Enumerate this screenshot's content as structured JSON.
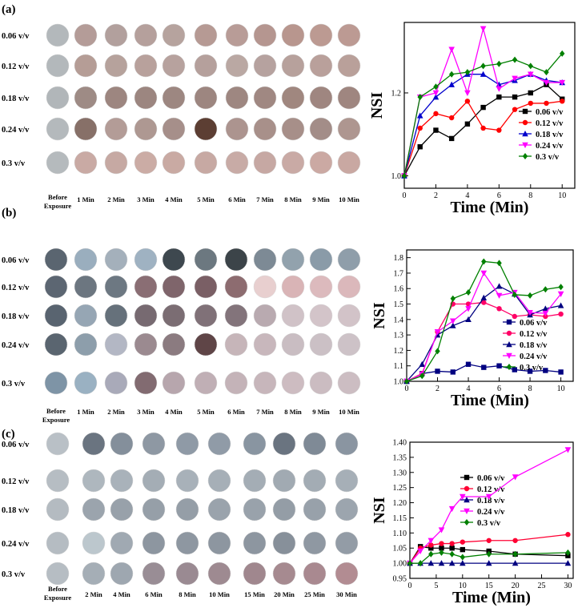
{
  "panels": [
    {
      "label": "(a)",
      "rows": [
        "0.06 v/v",
        "0.12 v/v",
        "0.18 v/v",
        "0.24 v/v",
        "0.3 v/v"
      ],
      "columns": [
        "Before Exposure",
        "1 Min",
        "2 Min",
        "3 Min",
        "4 Min",
        "5 Min",
        "6 Min",
        "7 Min",
        "8 Min",
        "9 Min",
        "10 Min"
      ],
      "swatch_colors": [
        [
          "#b3b8bb",
          "#b49c98",
          "#b2a09d",
          "#b5a09c",
          "#b6a39e",
          "#b69a94",
          "#b89c97",
          "#b59690",
          "#b8968e",
          "#bc9a92",
          "#bc9a93"
        ],
        [
          "#b3b8bb",
          "#b59d96",
          "#b6a29c",
          "#b8a19c",
          "#b7a29e",
          "#b5a09c",
          "#baa8a3",
          "#b6a29f",
          "#b7a19c",
          "#b9a09b",
          "#b9a09a"
        ],
        [
          "#b1b6b9",
          "#9e8b85",
          "#9d8680",
          "#9c8680",
          "#9d8781",
          "#9d8680",
          "#9e8781",
          "#a08882",
          "#a0877f",
          "#9f8680",
          "#9f8680"
        ],
        [
          "#b4b9bc",
          "#877068",
          "#b39c97",
          "#ae9892",
          "#a68f8a",
          "#5c3e33",
          "#ac948f",
          "#a8908a",
          "#a78f89",
          "#a38d88",
          "#ae9690"
        ],
        [
          "#b5babd",
          "#c9aaa4",
          "#c6a9a3",
          "#cbaca5",
          "#c9aaa3",
          "#c7a9a3",
          "#c8aba6",
          "#c6a8a3",
          "#c9aaa5",
          "#cba9a3",
          "#c9a8a2"
        ]
      ],
      "chart_data": {
        "type": "line",
        "title": "",
        "xlabel": "Time (Min)",
        "ylabel": "NSI",
        "xlim": [
          0,
          10.8
        ],
        "ylim": [
          0.97,
          1.37
        ],
        "xticks": [
          "0",
          "2",
          "4",
          "6",
          "8",
          "10"
        ],
        "yticks": [
          "1.0",
          "1.2"
        ],
        "legend_position": "right",
        "series": [
          {
            "name": "0.06 v/v",
            "color": "#000000",
            "marker": "square",
            "x": [
              0,
              1,
              2,
              3,
              4,
              5,
              6,
              7,
              8,
              9,
              10
            ],
            "y": [
              1.0,
              1.07,
              1.11,
              1.09,
              1.125,
              1.165,
              1.19,
              1.19,
              1.2,
              1.22,
              1.185
            ]
          },
          {
            "name": "0.12 v/v",
            "color": "#ff0000",
            "marker": "circle",
            "x": [
              0,
              1,
              2,
              3,
              4,
              5,
              6,
              7,
              8,
              9,
              10
            ],
            "y": [
              1.0,
              1.115,
              1.15,
              1.14,
              1.18,
              1.115,
              1.11,
              1.16,
              1.175,
              1.175,
              1.18
            ]
          },
          {
            "name": "0.18 v/v",
            "color": "#0000cc",
            "marker": "triangle-up",
            "x": [
              0,
              1,
              2,
              3,
              4,
              5,
              6,
              7,
              8,
              9,
              10
            ],
            "y": [
              1.0,
              1.145,
              1.19,
              1.22,
              1.245,
              1.245,
              1.22,
              1.23,
              1.245,
              1.23,
              1.225
            ]
          },
          {
            "name": "0.24 v/v",
            "color": "#ff00ff",
            "marker": "triangle-down",
            "x": [
              0,
              1,
              2,
              3,
              4,
              5,
              6,
              7,
              8,
              9,
              10
            ],
            "y": [
              1.0,
              1.19,
              1.2,
              1.305,
              1.2,
              1.355,
              1.21,
              1.235,
              1.245,
              1.225,
              1.225
            ]
          },
          {
            "name": "0.3 v/v",
            "color": "#008000",
            "marker": "diamond",
            "x": [
              0,
              1,
              2,
              3,
              4,
              5,
              6,
              7,
              8,
              9,
              10
            ],
            "y": [
              1.0,
              1.19,
              1.215,
              1.245,
              1.25,
              1.265,
              1.27,
              1.28,
              1.265,
              1.25,
              1.295
            ]
          }
        ]
      }
    },
    {
      "label": "(b)",
      "rows": [
        "0.06 v/v",
        "0.12 v/v",
        "0.18 v/v",
        "0.24 v/v",
        "0.3 v/v"
      ],
      "columns": [
        "Before Exposure",
        "1 Min",
        "2 Min",
        "3 Min",
        "4 Min",
        "5 Min",
        "6 Min",
        "7 Min",
        "8 Min",
        "9 Min",
        "10 Min"
      ],
      "swatch_colors": [
        [
          "#5a6570",
          "#9aaebe",
          "#a4b0bb",
          "#9fb2c2",
          "#3e484f",
          "#6c7880",
          "#3c4449",
          "#7d8a95",
          "#92a2ad",
          "#8a9ba8",
          "#8f9eaa"
        ],
        [
          "#5c6672",
          "#6c7680",
          "#6d7882",
          "#8a6e74",
          "#7f656b",
          "#7a5f65",
          "#8d6c70",
          "#e8cfcf",
          "#d9b4b6",
          "#dcbabd",
          "#dbb8bb"
        ],
        [
          "#596470",
          "#96a6b4",
          "#66717b",
          "#776a71",
          "#7b6d73",
          "#807178",
          "#83747b",
          "#b9aab0",
          "#d0c2c7",
          "#d3c4c9",
          "#d2c3c8"
        ],
        [
          "#5a6570",
          "#8d9eab",
          "#b3b7c4",
          "#9b8a90",
          "#8b7b80",
          "#5f4547",
          "#c6b5b9",
          "#c8b7bc",
          "#c9bdc2",
          "#cbc0c5",
          "#cdc2c7"
        ],
        [
          "#7e94a6",
          "#9ab1c2",
          "#a9aab9",
          "#826b71",
          "#b7a6ad",
          "#c0afb5",
          "#c4b3b8",
          "#c7b6bb",
          "#cdbcc1",
          "#cbbcc1",
          "#ccbdc2"
        ]
      ],
      "chart_data": {
        "type": "line",
        "title": "",
        "xlabel": "Time (Min)",
        "ylabel": "NSI",
        "xlim": [
          0,
          10.8
        ],
        "ylim": [
          1.0,
          1.85
        ],
        "xticks": [
          "0",
          "2",
          "4",
          "6",
          "8",
          "10"
        ],
        "yticks": [
          "1.0",
          "1.1",
          "1.2",
          "1.3",
          "1.4",
          "1.5",
          "1.6",
          "1.7",
          "1.8"
        ],
        "legend_position": "bottom-center",
        "series": [
          {
            "name": "0.06 v/v",
            "color": "#000080",
            "marker": "square",
            "x": [
              0,
              1,
              2,
              3,
              4,
              5,
              6,
              7,
              8,
              9,
              10
            ],
            "y": [
              1.0,
              1.05,
              1.065,
              1.06,
              1.11,
              1.09,
              1.1,
              1.075,
              1.065,
              1.07,
              1.06
            ]
          },
          {
            "name": "0.12 v/v",
            "color": "#ff0066",
            "marker": "circle",
            "x": [
              0,
              1,
              2,
              3,
              4,
              5,
              6,
              7,
              8,
              9,
              10
            ],
            "y": [
              1.0,
              1.05,
              1.32,
              1.5,
              1.5,
              1.51,
              1.47,
              1.42,
              1.43,
              1.42,
              1.435
            ]
          },
          {
            "name": "0.18 v/v",
            "color": "#000080",
            "marker": "triangle-up",
            "x": [
              0,
              1,
              2,
              3,
              4,
              5,
              6,
              7,
              8,
              9,
              10
            ],
            "y": [
              1.0,
              1.11,
              1.3,
              1.36,
              1.4,
              1.54,
              1.615,
              1.565,
              1.43,
              1.47,
              1.49
            ]
          },
          {
            "name": "0.24 v/v",
            "color": "#ff00ff",
            "marker": "triangle-down",
            "x": [
              0,
              1,
              2,
              3,
              4,
              5,
              6,
              7,
              8,
              9,
              10
            ],
            "y": [
              1.0,
              1.045,
              1.32,
              1.39,
              1.47,
              1.7,
              1.555,
              1.575,
              1.445,
              1.44,
              1.565
            ]
          },
          {
            "name": "0.3 v/v",
            "color": "#008000",
            "marker": "diamond",
            "x": [
              0,
              1,
              2,
              3,
              4,
              5,
              6,
              7,
              8,
              9,
              10
            ],
            "y": [
              1.0,
              1.035,
              1.195,
              1.535,
              1.575,
              1.775,
              1.765,
              1.56,
              1.555,
              1.595,
              1.61
            ]
          }
        ]
      }
    },
    {
      "label": "(c)",
      "rows": [
        "0.06 v/v",
        "0.12 v/v",
        "0.18 v/v",
        "0.24 v/v",
        "0.3 v/v"
      ],
      "columns": [
        "Before Exposure",
        "2 Min",
        "4 Min",
        "6 Min",
        "8 Min",
        "10 Min",
        "15 Min",
        "20 Min",
        "25 Min",
        "30 Min"
      ],
      "swatch_colors": [
        [
          "#b9c0c6",
          "#6a7480",
          "#848f9b",
          "#8e98a3",
          "#8f9aa6",
          "#909ba7",
          "#8995a1",
          "#6a7480",
          "#7f8a96",
          "#8a95a1"
        ],
        [
          "#b6bdc3",
          "#aeb7be",
          "#a9b2ba",
          "#a4adb5",
          "#a8b1b9",
          "#a6afb7",
          "#a4adb5",
          "#a1aab2",
          "#a3acb4",
          "#a6afb7"
        ],
        [
          "#b4bbc1",
          "#9ba4ad",
          "#98a1aa",
          "#969fa8",
          "#959ea7",
          "#9aa3ac",
          "#99a2ab",
          "#949da6",
          "#98a1aa",
          "#9ca5ae"
        ],
        [
          "#b5bcc2",
          "#bcc7cd",
          "#a0a9b2",
          "#8d96a0",
          "#8e97a1",
          "#8d96a0",
          "#8d96a0",
          "#87909a",
          "#8f98a2",
          "#939ca6"
        ],
        [
          "#b6bdc3",
          "#a5aeb6",
          "#9ea7b0",
          "#998d95",
          "#9a8a92",
          "#9e8a91",
          "#a0878e",
          "#a68a90",
          "#a98990",
          "#b28c92"
        ]
      ],
      "chart_data": {
        "type": "line",
        "title": "",
        "xlabel": "Time (Min)",
        "ylabel": "NSI",
        "xlim": [
          0,
          31
        ],
        "ylim": [
          0.95,
          1.4
        ],
        "xticks": [
          "0",
          "5",
          "10",
          "15",
          "20",
          "25",
          "30"
        ],
        "yticks": [
          "0.95",
          "1.00",
          "1.05",
          "1.10",
          "1.15",
          "1.20",
          "1.25",
          "1.30",
          "1.35",
          "1.40"
        ],
        "legend_position": "top-center",
        "series": [
          {
            "name": "0.06 v/v",
            "color": "#000000",
            "marker": "square",
            "x": [
              0,
              2,
              4,
              6,
              8,
              10,
              15,
              20,
              30
            ],
            "y": [
              1.0,
              1.055,
              1.05,
              1.05,
              1.05,
              1.045,
              1.04,
              1.03,
              1.025
            ]
          },
          {
            "name": "0.12 v/v",
            "color": "#ff0033",
            "marker": "circle",
            "x": [
              0,
              2,
              4,
              6,
              8,
              10,
              15,
              20,
              30
            ],
            "y": [
              1.0,
              1.05,
              1.06,
              1.065,
              1.065,
              1.07,
              1.075,
              1.075,
              1.095
            ]
          },
          {
            "name": "0.18 v/v",
            "color": "#000080",
            "marker": "triangle-up",
            "x": [
              0,
              2,
              4,
              6,
              8,
              10,
              15,
              20,
              30
            ],
            "y": [
              1.0,
              1.0,
              1.0,
              1.0,
              1.0,
              1.0,
              1.0,
              1.0,
              1.0
            ]
          },
          {
            "name": "0.24 v/v",
            "color": "#ff00ff",
            "marker": "triangle-down",
            "x": [
              0,
              2,
              4,
              6,
              8,
              10,
              15,
              20,
              30
            ],
            "y": [
              1.0,
              1.04,
              1.075,
              1.11,
              1.18,
              1.22,
              1.22,
              1.285,
              1.375
            ]
          },
          {
            "name": "0.3 v/v",
            "color": "#008000",
            "marker": "diamond",
            "x": [
              0,
              2,
              4,
              6,
              8,
              10,
              15,
              20,
              30
            ],
            "y": [
              1.0,
              1.0,
              1.03,
              1.035,
              1.03,
              1.02,
              1.03,
              1.03,
              1.035
            ]
          }
        ]
      }
    }
  ]
}
